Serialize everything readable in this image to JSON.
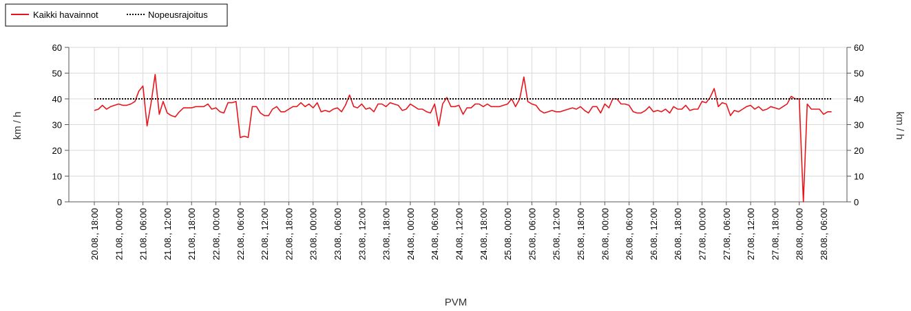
{
  "chart_data": {
    "type": "line",
    "title": "",
    "xlabel": "PVM",
    "ylabel_left": "km / h",
    "ylabel_right": "km / h",
    "ylim": [
      0,
      60
    ],
    "yticks": [
      0,
      10,
      20,
      30,
      40,
      50,
      60
    ],
    "grid": true,
    "legend_position": "top-left",
    "x_tick_labels": [
      "20.08., 18:00",
      "21.08., 00:00",
      "21.08., 06:00",
      "21.08., 12:00",
      "21.08., 18:00",
      "22.08., 00:00",
      "22.08., 06:00",
      "22.08., 12:00",
      "22.08., 18:00",
      "23.08., 00:00",
      "23.08., 06:00",
      "23.08., 12:00",
      "23.08., 18:00",
      "24.08., 00:00",
      "24.08., 06:00",
      "24.08., 12:00",
      "24.08., 18:00",
      "25.08., 00:00",
      "25.08., 06:00",
      "25.08., 12:00",
      "25.08., 18:00",
      "26.08., 00:00",
      "26.08., 06:00",
      "26.08., 12:00",
      "26.08., 18:00",
      "27.08., 00:00",
      "27.08., 06:00",
      "27.08., 12:00",
      "27.08., 18:00",
      "28.08., 00:00",
      "28.08., 06:00"
    ],
    "series": [
      {
        "name": "Kaikki havainnot",
        "color": "#e8141b",
        "style": "solid",
        "x": [
          0.0,
          0.17,
          0.33,
          0.5,
          0.67,
          0.83,
          1.0,
          1.17,
          1.33,
          1.5,
          1.67,
          1.83,
          2.0,
          2.17,
          2.33,
          2.5,
          2.67,
          2.83,
          3.0,
          3.17,
          3.33,
          3.5,
          3.67,
          3.83,
          4.0,
          4.17,
          4.33,
          4.5,
          4.67,
          4.83,
          5.0,
          5.17,
          5.33,
          5.5,
          5.67,
          5.83,
          6.0,
          6.17,
          6.33,
          6.5,
          6.67,
          6.83,
          7.0,
          7.17,
          7.33,
          7.5,
          7.67,
          7.83,
          8.0,
          8.17,
          8.33,
          8.5,
          8.67,
          8.83,
          9.0,
          9.17,
          9.33,
          9.5,
          9.67,
          9.83,
          10.0,
          10.17,
          10.33,
          10.5,
          10.67,
          10.83,
          11.0,
          11.17,
          11.33,
          11.5,
          11.67,
          11.83,
          12.0,
          12.17,
          12.33,
          12.5,
          12.67,
          12.83,
          13.0,
          13.17,
          13.33,
          13.5,
          13.67,
          13.83,
          14.0,
          14.17,
          14.33,
          14.5,
          14.67,
          14.83,
          15.0,
          15.17,
          15.33,
          15.5,
          15.67,
          15.83,
          16.0,
          16.17,
          16.33,
          16.5,
          16.67,
          16.83,
          17.0,
          17.17,
          17.33,
          17.5,
          17.67,
          17.83,
          18.0,
          18.17,
          18.33,
          18.5,
          18.67,
          18.83,
          19.0,
          19.17,
          19.33,
          19.5,
          19.67,
          19.83,
          20.0,
          20.17,
          20.33,
          20.5,
          20.67,
          20.83,
          21.0,
          21.17,
          21.33,
          21.5,
          21.67,
          21.83,
          22.0,
          22.17,
          22.33,
          22.5,
          22.67,
          22.83,
          23.0,
          23.17,
          23.33,
          23.5,
          23.67,
          23.83,
          24.0,
          24.17,
          24.33,
          24.5,
          24.67,
          24.83,
          25.0,
          25.17,
          25.33,
          25.5,
          25.67,
          25.83,
          26.0,
          26.17,
          26.33,
          26.5,
          26.67,
          26.83,
          27.0,
          27.17,
          27.33,
          27.5,
          27.67,
          27.83,
          28.0,
          28.17,
          28.33,
          28.5,
          28.67,
          28.83,
          29.0,
          29.17,
          29.33,
          29.5,
          29.67,
          29.83,
          30.0,
          30.17,
          30.33
        ],
        "y": [
          35.5,
          36,
          37.5,
          36,
          37,
          37.5,
          38,
          37.5,
          37.5,
          38,
          39,
          43,
          45,
          29.5,
          38,
          49.5,
          34,
          39,
          34.5,
          33.5,
          33,
          35,
          36.5,
          36.5,
          36.5,
          37,
          37,
          37,
          38,
          36,
          36.5,
          35,
          34.5,
          38.5,
          38.5,
          39,
          25,
          25.5,
          25,
          37,
          37,
          34.5,
          33.5,
          33.5,
          36,
          37,
          35,
          35,
          36,
          37,
          37,
          38.5,
          37,
          38,
          36.5,
          38.5,
          35,
          35.5,
          35,
          36,
          36.5,
          35,
          37.5,
          41.5,
          37,
          36.5,
          38,
          36,
          36.5,
          35,
          38,
          38,
          37,
          38.5,
          38,
          37.5,
          35.5,
          36,
          38,
          37,
          36,
          36,
          35,
          34.5,
          38,
          29.5,
          38,
          40.5,
          37,
          37,
          37.5,
          34,
          36.5,
          36.5,
          38,
          38,
          37,
          38,
          37,
          37,
          37,
          37.5,
          38,
          40,
          37,
          40,
          48.5,
          39,
          38,
          37.5,
          35.5,
          34.5,
          35,
          35.5,
          35,
          35,
          35.5,
          36,
          36.5,
          36,
          37,
          35.5,
          34.5,
          37,
          37,
          34.5,
          38,
          36.5,
          40,
          40,
          38,
          38,
          37.5,
          35,
          34.5,
          34.5,
          35.5,
          37,
          35,
          35.5,
          35,
          36,
          34.5,
          37,
          36,
          36,
          37.5,
          35.5,
          36,
          36,
          39,
          38.5,
          40.5,
          44,
          37,
          38.5,
          38,
          33.5,
          35.5,
          35,
          36,
          37,
          37.5,
          36,
          37,
          35.5,
          36,
          37,
          36.5,
          36,
          37,
          38,
          41,
          40,
          40,
          0,
          38,
          36,
          36,
          36,
          34,
          35,
          35
        ]
      },
      {
        "name": "Nopeusrajoitus",
        "color": "#000000",
        "style": "dotted",
        "x": [
          0,
          30.33
        ],
        "y": [
          40,
          40
        ]
      }
    ]
  }
}
